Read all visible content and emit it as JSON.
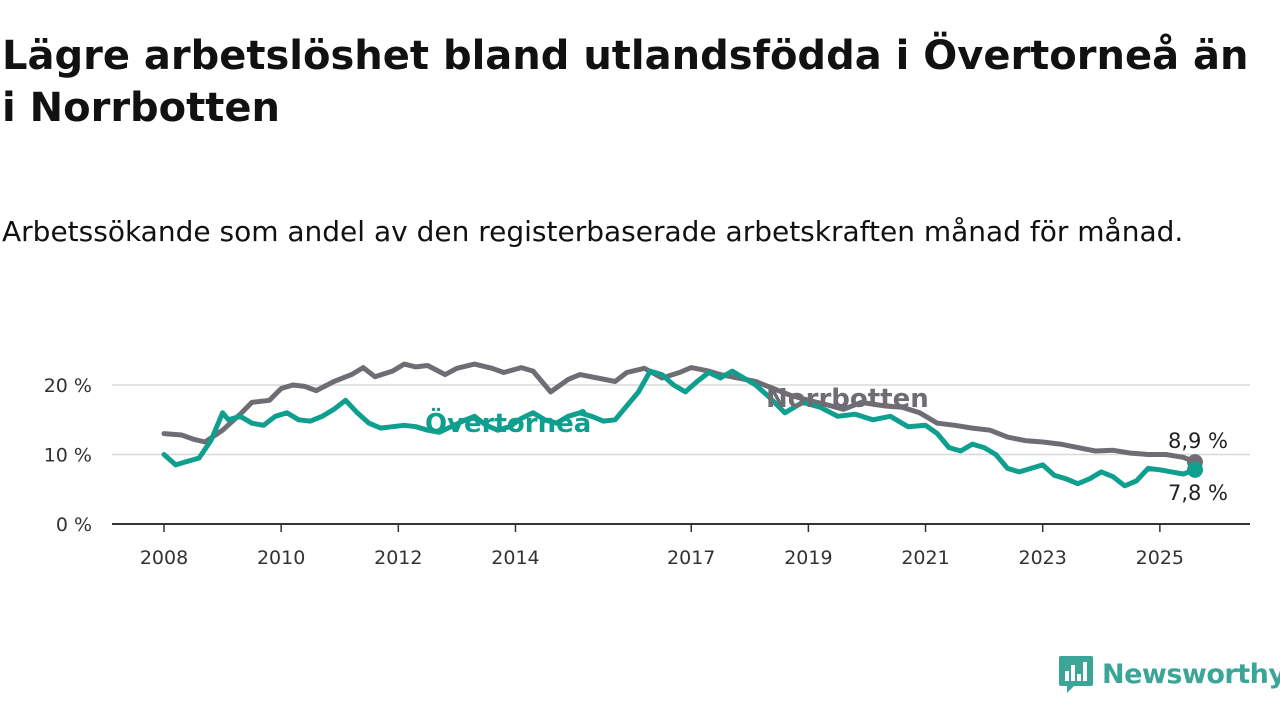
{
  "title": "Lägre arbetslöshet bland utlandsfödda i Övertorneå än i Norrbotten",
  "subtitle": "Arbetssökande som andel av den registerbaserade arbetskraften månad för månad.",
  "brand": {
    "name": "Newsworthy",
    "color": "#3ba597"
  },
  "chart_data": {
    "type": "line",
    "unit": "%",
    "ylim": [
      0,
      25
    ],
    "yticks": [
      0,
      10,
      20
    ],
    "ytick_labels": [
      "0 %",
      "10 %",
      "20 %"
    ],
    "xlim": [
      2008.0,
      2026.5
    ],
    "xticks": [
      2008,
      2010,
      2012,
      2014,
      2017,
      2019,
      2021,
      2023,
      2025
    ],
    "xtick_labels": [
      "2008",
      "2010",
      "2012",
      "2014",
      "2017",
      "2019",
      "2021",
      "2023",
      "2025"
    ],
    "grid": "horizontal",
    "legend": "inline labels",
    "series": [
      {
        "name": "Norrbotten",
        "color": "#6f6d73",
        "end_label": "8,9 %",
        "x": [
          2008.0,
          2008.3,
          2008.5,
          2008.7,
          2009.0,
          2009.3,
          2009.5,
          2009.8,
          2010.0,
          2010.2,
          2010.4,
          2010.6,
          2010.9,
          2011.2,
          2011.4,
          2011.6,
          2011.9,
          2012.1,
          2012.3,
          2012.5,
          2012.8,
          2013.0,
          2013.3,
          2013.6,
          2013.8,
          2014.1,
          2014.3,
          2014.6,
          2014.9,
          2015.1,
          2015.4,
          2015.7,
          2015.9,
          2016.2,
          2016.5,
          2016.8,
          2017.0,
          2017.3,
          2017.5,
          2017.8,
          2018.1,
          2018.4,
          2018.7,
          2019.0,
          2019.3,
          2019.6,
          2019.9,
          2020.3,
          2020.6,
          2020.9,
          2021.2,
          2021.5,
          2021.8,
          2022.1,
          2022.4,
          2022.7,
          2023.0,
          2023.3,
          2023.6,
          2023.9,
          2024.2,
          2024.5,
          2024.8,
          2025.1,
          2025.4,
          2025.6
        ],
        "values": [
          13.0,
          12.8,
          12.2,
          11.8,
          13.5,
          15.8,
          17.5,
          17.8,
          19.5,
          20.0,
          19.8,
          19.2,
          20.5,
          21.5,
          22.5,
          21.2,
          22.0,
          23.0,
          22.6,
          22.8,
          21.5,
          22.4,
          23.0,
          22.4,
          21.8,
          22.5,
          22.0,
          19.0,
          20.8,
          21.5,
          21.0,
          20.5,
          21.8,
          22.4,
          21.0,
          21.8,
          22.5,
          22.0,
          21.5,
          21.0,
          20.5,
          19.5,
          18.5,
          17.8,
          17.2,
          16.5,
          17.5,
          17.0,
          16.8,
          16.0,
          14.5,
          14.2,
          13.8,
          13.5,
          12.5,
          12.0,
          11.8,
          11.5,
          11.0,
          10.5,
          10.6,
          10.2,
          10.0,
          10.0,
          9.6,
          8.9
        ]
      },
      {
        "name": "Övertorneå",
        "color": "#0f9f8f",
        "end_label": "7,8 %",
        "x": [
          2008.0,
          2008.2,
          2008.4,
          2008.6,
          2008.8,
          2009.0,
          2009.1,
          2009.3,
          2009.5,
          2009.7,
          2009.9,
          2010.1,
          2010.3,
          2010.5,
          2010.7,
          2010.9,
          2011.1,
          2011.3,
          2011.5,
          2011.7,
          2011.9,
          2012.1,
          2012.3,
          2012.5,
          2012.7,
          2012.9,
          2013.1,
          2013.3,
          2013.5,
          2013.7,
          2013.9,
          2014.1,
          2014.3,
          2014.5,
          2014.7,
          2014.9,
          2015.1,
          2015.3,
          2015.5,
          2015.7,
          2015.9,
          2016.1,
          2016.3,
          2016.5,
          2016.7,
          2016.9,
          2017.1,
          2017.3,
          2017.5,
          2017.7,
          2017.9,
          2018.1,
          2018.3,
          2018.6,
          2018.9,
          2019.2,
          2019.5,
          2019.8,
          2020.1,
          2020.4,
          2020.7,
          2021.0,
          2021.2,
          2021.4,
          2021.6,
          2021.8,
          2022.0,
          2022.2,
          2022.4,
          2022.6,
          2022.8,
          2023.0,
          2023.2,
          2023.4,
          2023.6,
          2023.8,
          2024.0,
          2024.2,
          2024.4,
          2024.6,
          2024.8,
          2025.0,
          2025.2,
          2025.4,
          2025.6
        ],
        "values": [
          10.0,
          8.5,
          9.0,
          9.5,
          12.0,
          16.0,
          15.0,
          15.5,
          14.5,
          14.2,
          15.5,
          16.0,
          15.0,
          14.8,
          15.5,
          16.5,
          17.8,
          16.0,
          14.5,
          13.8,
          14.0,
          14.2,
          14.0,
          13.5,
          13.2,
          14.0,
          14.8,
          15.5,
          14.2,
          13.5,
          14.0,
          15.2,
          16.0,
          15.0,
          14.5,
          15.5,
          16.0,
          15.5,
          14.8,
          15.0,
          17.0,
          19.0,
          22.0,
          21.5,
          20.0,
          19.0,
          20.5,
          21.8,
          21.0,
          22.0,
          21.0,
          20.0,
          18.5,
          16.0,
          17.5,
          16.8,
          15.5,
          15.8,
          15.0,
          15.5,
          14.0,
          14.2,
          13.0,
          11.0,
          10.5,
          11.5,
          11.0,
          10.0,
          8.0,
          7.5,
          8.0,
          8.5,
          7.0,
          6.5,
          5.8,
          6.5,
          7.5,
          6.8,
          5.5,
          6.2,
          8.0,
          7.8,
          7.5,
          7.2,
          7.8
        ]
      }
    ]
  }
}
